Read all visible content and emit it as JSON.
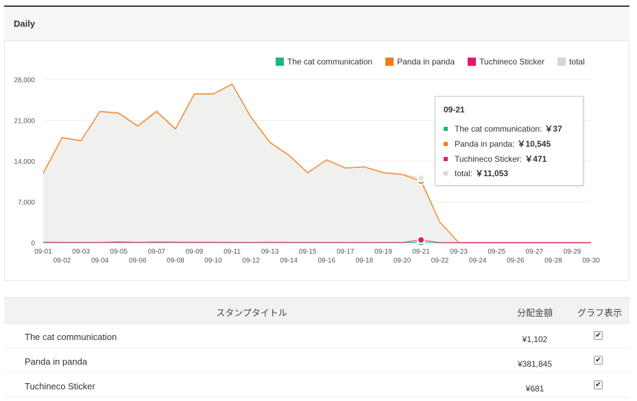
{
  "panel": {
    "title": "Daily"
  },
  "colors": {
    "cat": "#1bb679",
    "panda": "#f57c14",
    "tuchi": "#e8176e",
    "total_fill": "#d9e0d5"
  },
  "legend": [
    {
      "label": "The cat communication",
      "color": "#1bb679"
    },
    {
      "label": "Panda in panda",
      "color": "#f57c14"
    },
    {
      "label": "Tuchineco Sticker",
      "color": "#e8176e"
    },
    {
      "label": "total",
      "color": "#d0dccb"
    }
  ],
  "tooltip": {
    "date": "09-21",
    "rows": [
      {
        "label": "The cat communication:",
        "value": "￥37",
        "color": "#1bb679"
      },
      {
        "label": "Panda in panda:",
        "value": "￥10,545",
        "color": "#f57c14"
      },
      {
        "label": "Tuchineco Sticker:",
        "value": "￥471",
        "color": "#e8176e"
      },
      {
        "label": "total:",
        "value": "￥11,053",
        "color": "#d8d8d8"
      }
    ]
  },
  "chart_data": {
    "type": "area",
    "x": [
      "09-01",
      "09-02",
      "09-03",
      "09-04",
      "09-05",
      "09-06",
      "09-07",
      "09-08",
      "09-09",
      "09-10",
      "09-11",
      "09-12",
      "09-13",
      "09-14",
      "09-15",
      "09-16",
      "09-17",
      "09-18",
      "09-19",
      "09-20",
      "09-21",
      "09-22",
      "09-23",
      "09-24",
      "09-25",
      "09-26",
      "09-27",
      "09-28",
      "09-29",
      "09-30"
    ],
    "yticks": [
      "28,000",
      "21,000",
      "14,000",
      "7,000",
      "0"
    ],
    "ylim": [
      0,
      28000
    ],
    "series": [
      {
        "name": "The cat communication",
        "values": [
          80,
          60,
          40,
          50,
          150,
          60,
          120,
          100,
          80,
          70,
          60,
          50,
          80,
          60,
          40,
          50,
          40,
          30,
          50,
          40,
          37,
          0,
          0,
          0,
          0,
          0,
          0,
          0,
          0,
          0
        ]
      },
      {
        "name": "Panda in panda",
        "values": [
          11900,
          18000,
          17500,
          22500,
          22200,
          20000,
          22500,
          19500,
          25500,
          25500,
          27200,
          21500,
          17200,
          15000,
          12000,
          14200,
          12800,
          13000,
          12000,
          11700,
          10545,
          3500,
          0,
          0,
          0,
          0,
          0,
          0,
          0,
          0
        ]
      },
      {
        "name": "Tuchineco Sticker",
        "values": [
          30,
          20,
          20,
          20,
          30,
          20,
          20,
          20,
          20,
          20,
          20,
          20,
          20,
          20,
          20,
          20,
          20,
          20,
          20,
          20,
          471,
          0,
          0,
          0,
          0,
          0,
          0,
          0,
          0,
          0
        ]
      },
      {
        "name": "total",
        "values": [
          12010,
          18080,
          17560,
          22570,
          22380,
          20080,
          22640,
          19620,
          25600,
          25590,
          27280,
          21570,
          17300,
          15080,
          12060,
          14270,
          12860,
          13050,
          12070,
          11760,
          11053,
          3500,
          0,
          0,
          0,
          0,
          0,
          0,
          0,
          0
        ]
      }
    ],
    "highlight_index": 20,
    "grid": true,
    "legend_position": "top-right"
  },
  "table": {
    "headers": {
      "title": "スタンプタイトル",
      "amount": "分配金額",
      "graph": "グラフ表示"
    },
    "rows": [
      {
        "name": "The cat communication",
        "amount": "¥1,102",
        "checked": true
      },
      {
        "name": "Panda in panda",
        "amount": "¥381,845",
        "checked": true
      },
      {
        "name": "Tuchineco Sticker",
        "amount": "¥681",
        "checked": true
      }
    ]
  }
}
